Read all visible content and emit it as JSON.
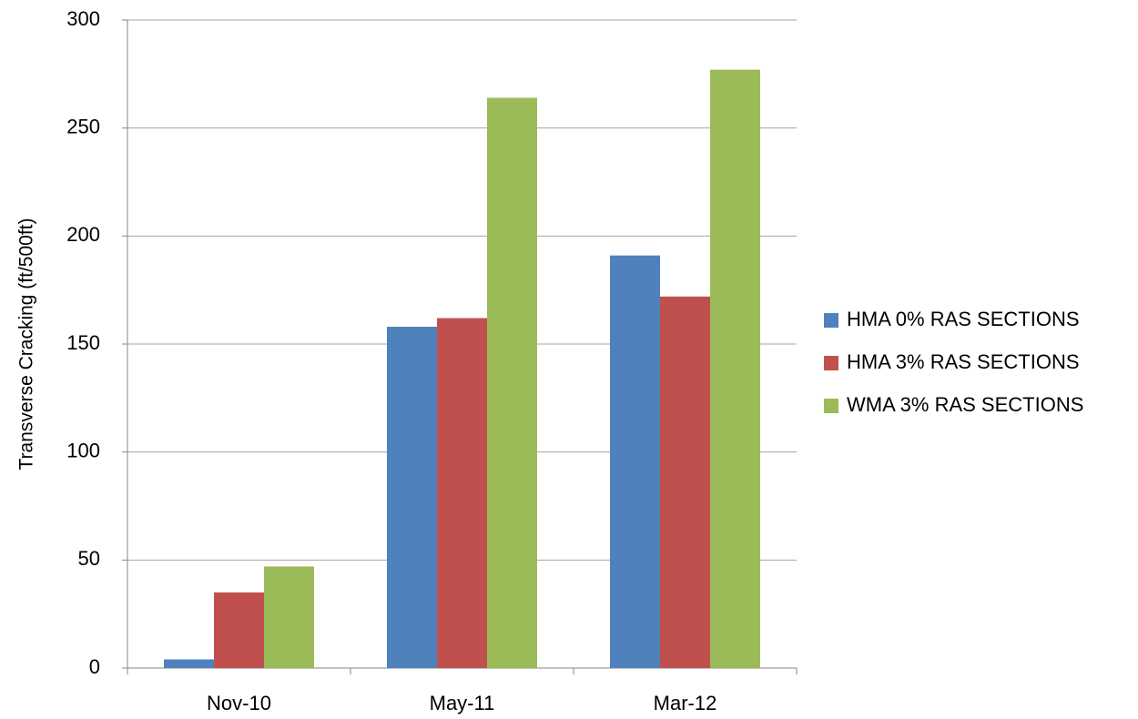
{
  "chart_data": {
    "type": "bar",
    "y_label": "Transverse Cracking (ft/500ft)",
    "categories": [
      "Nov-10",
      "May-11",
      "Mar-12"
    ],
    "series": [
      {
        "name": "HMA 0% RAS SECTIONS",
        "color": "#4f81bd",
        "values": [
          4,
          158,
          191
        ]
      },
      {
        "name": "HMA 3% RAS SECTIONS",
        "color": "#c0504d",
        "values": [
          35,
          162,
          172
        ]
      },
      {
        "name": "WMA 3% RAS SECTIONS",
        "color": "#9bbb59",
        "values": [
          47,
          264,
          277
        ]
      }
    ],
    "ylim": [
      0,
      300
    ],
    "yticks": [
      0,
      50,
      100,
      150,
      200,
      250,
      300
    ],
    "grid": true,
    "legend": "right"
  }
}
